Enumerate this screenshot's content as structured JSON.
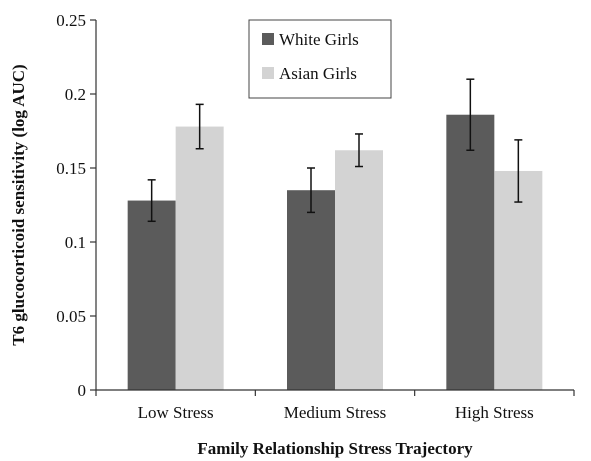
{
  "chart_data": {
    "type": "bar",
    "xlabel": "Family Relationship Stress Trajectory",
    "ylabel": "T6 glucocorticoid sensitivity (log AUC)",
    "categories": [
      "Low Stress",
      "Medium Stress",
      "High Stress"
    ],
    "ylim": [
      0,
      0.25
    ],
    "yticks": [
      "0",
      "0.05",
      "0.1",
      "0.15",
      "0.2",
      "0.25"
    ],
    "ytick_values": [
      0,
      0.05,
      0.1,
      0.15,
      0.2,
      0.25
    ],
    "grid": false,
    "legend_position": "top-center",
    "series": [
      {
        "name": "White Girls",
        "color": "#5b5b5b",
        "values": [
          0.128,
          0.135,
          0.186
        ],
        "error_low": [
          0.114,
          0.12,
          0.162
        ],
        "error_high": [
          0.142,
          0.15,
          0.21
        ]
      },
      {
        "name": "Asian Girls",
        "color": "#d3d3d3",
        "values": [
          0.178,
          0.162,
          0.148
        ],
        "error_low": [
          0.163,
          0.151,
          0.127
        ],
        "error_high": [
          0.193,
          0.173,
          0.169
        ]
      }
    ]
  }
}
